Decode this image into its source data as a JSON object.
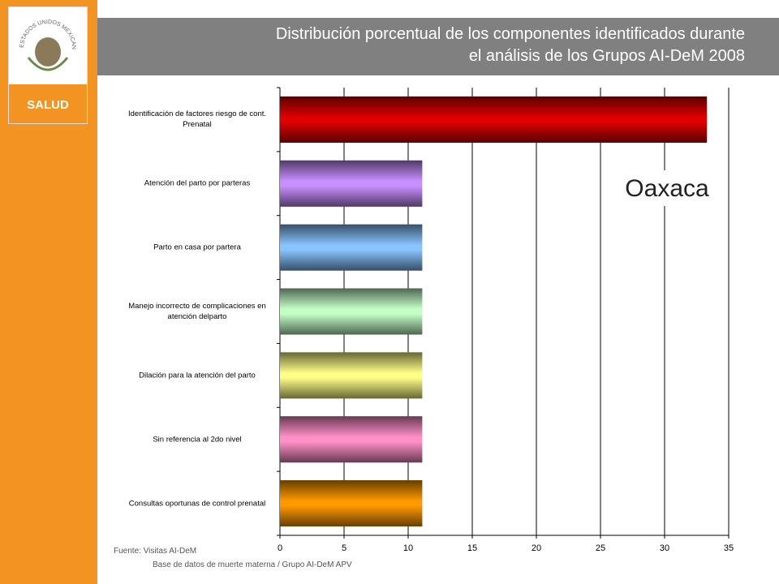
{
  "logo": {
    "emblem_text": "ESTADOS UNIDOS MEXICANOS",
    "label": "SALUD"
  },
  "chart_data": {
    "type": "bar",
    "orientation": "horizontal",
    "title_lines": [
      "Distribución porcentual de los componentes identificados durante",
      "el análisis de los Grupos AI-DeM 2008"
    ],
    "categories": [
      "Identificación de factores riesgo de cont. Prenatal",
      "Atención del parto por parteras",
      "Parto en casa por partera",
      "Manejo incorrecto de complicaciones en atención delparto",
      "Dilación para la atención del parto",
      "Sin referencia al 2do nivel",
      "Consultas oportunas de control prenatal"
    ],
    "values": [
      33.3,
      11.1,
      11.1,
      11.1,
      11.1,
      11.1,
      11.1
    ],
    "colors": [
      "#e00000",
      "#c890ff",
      "#88c4ff",
      "#c4ffc8",
      "#ffff88",
      "#ff90c8",
      "#ff9900"
    ],
    "xlim": [
      0,
      35
    ],
    "xticks": [
      0,
      5,
      10,
      15,
      20,
      25,
      30,
      35
    ],
    "grid": true,
    "annotation": "Oaxaca",
    "source": [
      "Fuente: Visitas AI-DeM",
      "Base de datos de muerte materna / Grupo AI-DeM APV"
    ]
  }
}
